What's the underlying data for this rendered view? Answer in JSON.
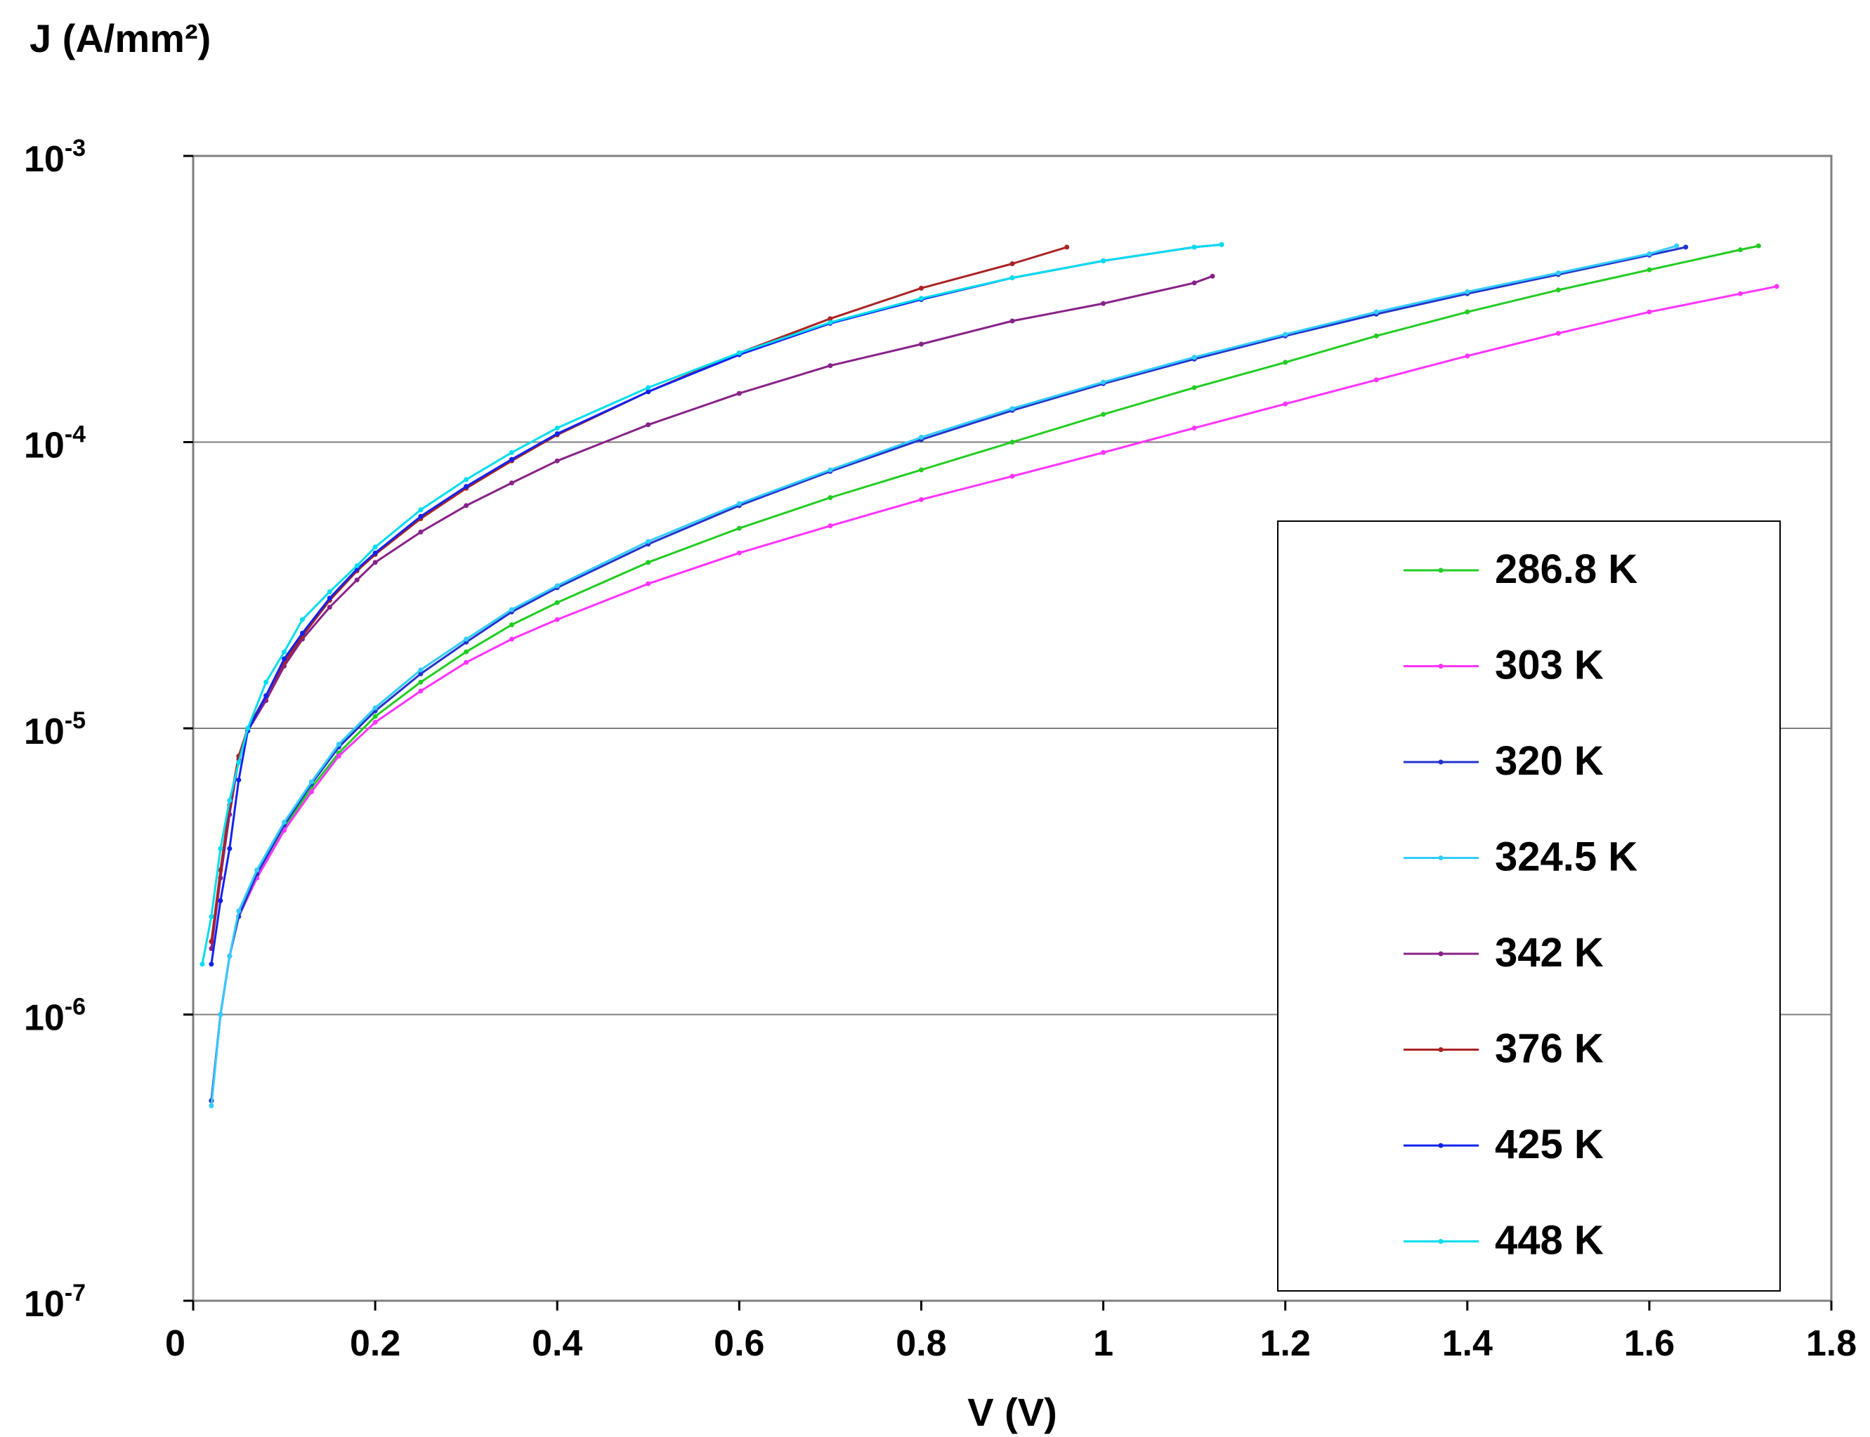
{
  "chart_data": {
    "type": "line",
    "title": "",
    "ylabel": "J (A/mm²)",
    "xlabel": "V (V)",
    "x_scale": "linear",
    "y_scale": "log",
    "xlim": [
      0,
      1.8
    ],
    "ylim": [
      1e-07,
      0.001
    ],
    "grid": "horizontal major gridlines",
    "legend_position": "right, lower half",
    "x_ticks": [
      "0",
      "0.2",
      "0.4",
      "0.6",
      "0.8",
      "1",
      "1.2",
      "1.4",
      "1.6",
      "1.8"
    ],
    "y_ticks": [
      {
        "base": "10",
        "exp": "-3"
      },
      {
        "base": "10",
        "exp": "-4"
      },
      {
        "base": "10",
        "exp": "-5"
      },
      {
        "base": "10",
        "exp": "-6"
      },
      {
        "base": "10",
        "exp": "-7"
      }
    ],
    "series": [
      {
        "name": "286.8 K",
        "color": "#22cc22",
        "points": [
          [
            0.02,
            5e-07
          ],
          [
            0.03,
            1e-06
          ],
          [
            0.04,
            1.6e-06
          ],
          [
            0.05,
            2.2e-06
          ],
          [
            0.07,
            3e-06
          ],
          [
            0.1,
            4.5e-06
          ],
          [
            0.13,
            6.2e-06
          ],
          [
            0.16,
            8.2e-06
          ],
          [
            0.2,
            1.1e-05
          ],
          [
            0.25,
            1.45e-05
          ],
          [
            0.3,
            1.85e-05
          ],
          [
            0.35,
            2.3e-05
          ],
          [
            0.4,
            2.75e-05
          ],
          [
            0.5,
            3.8e-05
          ],
          [
            0.6,
            5e-05
          ],
          [
            0.7,
            6.4e-05
          ],
          [
            0.8,
            8e-05
          ],
          [
            0.9,
            0.0001
          ],
          [
            1.0,
            0.000125
          ],
          [
            1.1,
            0.000155
          ],
          [
            1.2,
            0.00019
          ],
          [
            1.3,
            0.000235
          ],
          [
            1.4,
            0.000285
          ],
          [
            1.5,
            0.00034
          ],
          [
            1.6,
            0.0004
          ],
          [
            1.7,
            0.00047
          ],
          [
            1.72,
            0.000485
          ]
        ]
      },
      {
        "name": "303 K",
        "color": "#ff33ff",
        "points": [
          [
            0.02,
            5e-07
          ],
          [
            0.03,
            1e-06
          ],
          [
            0.04,
            1.6e-06
          ],
          [
            0.05,
            2.2e-06
          ],
          [
            0.07,
            3e-06
          ],
          [
            0.1,
            4.4e-06
          ],
          [
            0.13,
            6e-06
          ],
          [
            0.16,
            8e-06
          ],
          [
            0.2,
            1.05e-05
          ],
          [
            0.25,
            1.35e-05
          ],
          [
            0.3,
            1.7e-05
          ],
          [
            0.35,
            2.05e-05
          ],
          [
            0.4,
            2.4e-05
          ],
          [
            0.5,
            3.2e-05
          ],
          [
            0.6,
            4.1e-05
          ],
          [
            0.7,
            5.1e-05
          ],
          [
            0.8,
            6.3e-05
          ],
          [
            0.9,
            7.6e-05
          ],
          [
            1.0,
            9.2e-05
          ],
          [
            1.1,
            0.000112
          ],
          [
            1.2,
            0.000136
          ],
          [
            1.3,
            0.000165
          ],
          [
            1.4,
            0.0002
          ],
          [
            1.5,
            0.00024
          ],
          [
            1.6,
            0.000285
          ],
          [
            1.7,
            0.00033
          ],
          [
            1.74,
            0.00035
          ]
        ]
      },
      {
        "name": "320 K",
        "color": "#2233cc",
        "points": [
          [
            0.02,
            5e-07
          ],
          [
            0.03,
            1e-06
          ],
          [
            0.04,
            1.6e-06
          ],
          [
            0.05,
            2.2e-06
          ],
          [
            0.07,
            3.1e-06
          ],
          [
            0.1,
            4.6e-06
          ],
          [
            0.13,
            6.4e-06
          ],
          [
            0.16,
            8.6e-06
          ],
          [
            0.2,
            1.15e-05
          ],
          [
            0.25,
            1.55e-05
          ],
          [
            0.3,
            2e-05
          ],
          [
            0.35,
            2.55e-05
          ],
          [
            0.4,
            3.1e-05
          ],
          [
            0.5,
            4.4e-05
          ],
          [
            0.6,
            6e-05
          ],
          [
            0.7,
            7.9e-05
          ],
          [
            0.8,
            0.000102
          ],
          [
            0.9,
            0.000129
          ],
          [
            1.0,
            0.00016
          ],
          [
            1.1,
            0.000195
          ],
          [
            1.2,
            0.000235
          ],
          [
            1.3,
            0.00028
          ],
          [
            1.4,
            0.00033
          ],
          [
            1.5,
            0.000385
          ],
          [
            1.6,
            0.00045
          ],
          [
            1.64,
            0.00048
          ]
        ]
      },
      {
        "name": "324.5 K",
        "color": "#33ccff",
        "points": [
          [
            0.02,
            4.8e-07
          ],
          [
            0.03,
            1e-06
          ],
          [
            0.04,
            1.6e-06
          ],
          [
            0.05,
            2.3e-06
          ],
          [
            0.07,
            3.2e-06
          ],
          [
            0.1,
            4.7e-06
          ],
          [
            0.13,
            6.5e-06
          ],
          [
            0.16,
            8.8e-06
          ],
          [
            0.2,
            1.18e-05
          ],
          [
            0.25,
            1.6e-05
          ],
          [
            0.3,
            2.05e-05
          ],
          [
            0.35,
            2.6e-05
          ],
          [
            0.4,
            3.15e-05
          ],
          [
            0.5,
            4.5e-05
          ],
          [
            0.6,
            6.1e-05
          ],
          [
            0.7,
            8e-05
          ],
          [
            0.8,
            0.000104
          ],
          [
            0.9,
            0.000131
          ],
          [
            1.0,
            0.000162
          ],
          [
            1.1,
            0.000198
          ],
          [
            1.2,
            0.000238
          ],
          [
            1.3,
            0.000285
          ],
          [
            1.4,
            0.000335
          ],
          [
            1.5,
            0.00039
          ],
          [
            1.6,
            0.000455
          ],
          [
            1.63,
            0.000485
          ]
        ]
      },
      {
        "name": "342 K",
        "color": "#882288",
        "points": [
          [
            0.02,
            1.7e-06
          ],
          [
            0.03,
            3e-06
          ],
          [
            0.04,
            5e-06
          ],
          [
            0.05,
            7.8e-06
          ],
          [
            0.06,
            9.8e-06
          ],
          [
            0.08,
            1.25e-05
          ],
          [
            0.1,
            1.65e-05
          ],
          [
            0.12,
            2.05e-05
          ],
          [
            0.15,
            2.65e-05
          ],
          [
            0.18,
            3.3e-05
          ],
          [
            0.2,
            3.8e-05
          ],
          [
            0.25,
            4.85e-05
          ],
          [
            0.3,
            6e-05
          ],
          [
            0.35,
            7.2e-05
          ],
          [
            0.4,
            8.6e-05
          ],
          [
            0.5,
            0.000115
          ],
          [
            0.6,
            0.000148
          ],
          [
            0.7,
            0.000185
          ],
          [
            0.8,
            0.00022
          ],
          [
            0.9,
            0.000265
          ],
          [
            1.0,
            0.000305
          ],
          [
            1.1,
            0.00036
          ],
          [
            1.12,
            0.00038
          ]
        ]
      },
      {
        "name": "376 K",
        "color": "#aa2222",
        "points": [
          [
            0.02,
            1.8e-06
          ],
          [
            0.03,
            3.2e-06
          ],
          [
            0.04,
            5.4e-06
          ],
          [
            0.05,
            8e-06
          ],
          [
            0.06,
            1e-05
          ],
          [
            0.08,
            1.3e-05
          ],
          [
            0.1,
            1.7e-05
          ],
          [
            0.12,
            2.1e-05
          ],
          [
            0.15,
            2.8e-05
          ],
          [
            0.18,
            3.55e-05
          ],
          [
            0.2,
            4.05e-05
          ],
          [
            0.25,
            5.4e-05
          ],
          [
            0.3,
            6.9e-05
          ],
          [
            0.35,
            8.6e-05
          ],
          [
            0.4,
            0.000106
          ],
          [
            0.5,
            0.00015
          ],
          [
            0.6,
            0.000205
          ],
          [
            0.7,
            0.00027
          ],
          [
            0.8,
            0.000345
          ],
          [
            0.9,
            0.00042
          ],
          [
            0.96,
            0.00048
          ]
        ]
      },
      {
        "name": "425 K",
        "color": "#1122ee",
        "points": [
          [
            0.02,
            1.5e-06
          ],
          [
            0.03,
            2.5e-06
          ],
          [
            0.04,
            3.8e-06
          ],
          [
            0.05,
            6.6e-06
          ],
          [
            0.06,
            9.8e-06
          ],
          [
            0.08,
            1.3e-05
          ],
          [
            0.1,
            1.75e-05
          ],
          [
            0.12,
            2.15e-05
          ],
          [
            0.15,
            2.85e-05
          ],
          [
            0.18,
            3.6e-05
          ],
          [
            0.2,
            4.1e-05
          ],
          [
            0.25,
            5.5e-05
          ],
          [
            0.3,
            7e-05
          ],
          [
            0.35,
            8.7e-05
          ],
          [
            0.4,
            0.000107
          ],
          [
            0.5,
            0.00015
          ],
          [
            0.6,
            0.000202
          ],
          [
            0.7,
            0.00026
          ],
          [
            0.8,
            0.000315
          ],
          [
            0.9,
            0.000375
          ],
          [
            1.0,
            0.00043
          ],
          [
            1.1,
            0.00048
          ],
          [
            1.13,
            0.00049
          ]
        ]
      },
      {
        "name": "448 K",
        "color": "#00ddee",
        "points": [
          [
            0.01,
            1.5e-06
          ],
          [
            0.02,
            2.2e-06
          ],
          [
            0.03,
            3.8e-06
          ],
          [
            0.04,
            5.6e-06
          ],
          [
            0.05,
            7.6e-06
          ],
          [
            0.06,
            1e-05
          ],
          [
            0.08,
            1.45e-05
          ],
          [
            0.1,
            1.85e-05
          ],
          [
            0.12,
            2.4e-05
          ],
          [
            0.15,
            3e-05
          ],
          [
            0.18,
            3.7e-05
          ],
          [
            0.2,
            4.3e-05
          ],
          [
            0.25,
            5.8e-05
          ],
          [
            0.3,
            7.4e-05
          ],
          [
            0.35,
            9.2e-05
          ],
          [
            0.4,
            0.000112
          ],
          [
            0.5,
            0.000155
          ],
          [
            0.6,
            0.000205
          ],
          [
            0.7,
            0.000262
          ],
          [
            0.8,
            0.000318
          ],
          [
            0.9,
            0.000375
          ],
          [
            1.0,
            0.00043
          ],
          [
            1.1,
            0.00048
          ],
          [
            1.13,
            0.00049
          ]
        ]
      }
    ]
  }
}
